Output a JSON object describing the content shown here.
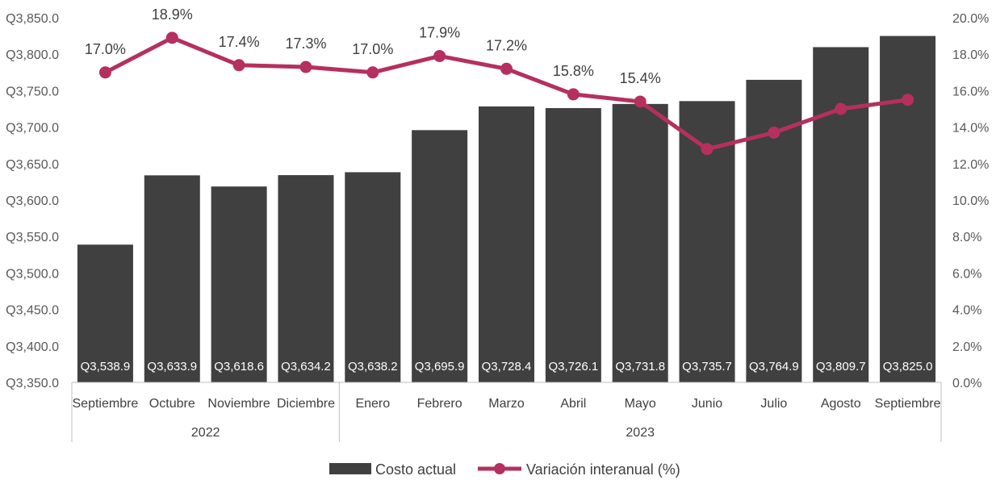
{
  "chart_data": {
    "type": "bar",
    "categories": [
      "Septiembre",
      "Octubre",
      "Noviembre",
      "Diciembre",
      "Enero",
      "Febrero",
      "Marzo",
      "Abril",
      "Mayo",
      "Junio",
      "Julio",
      "Agosto",
      "Septiembre"
    ],
    "groups": [
      {
        "label": "2022",
        "count": 4
      },
      {
        "label": "2023",
        "count": 9
      }
    ],
    "series": [
      {
        "name": "Costo actual",
        "type": "bar",
        "axis": "left",
        "values": [
          3538.9,
          3633.9,
          3618.6,
          3634.2,
          3638.2,
          3695.9,
          3728.4,
          3726.1,
          3731.8,
          3735.7,
          3764.9,
          3809.7,
          3825.0
        ],
        "labels": [
          "Q3,538.9",
          "Q3,633.9",
          "Q3,618.6",
          "Q3,634.2",
          "Q3,638.2",
          "Q3,695.9",
          "Q3,728.4",
          "Q3,726.1",
          "Q3,731.8",
          "Q3,735.7",
          "Q3,764.9",
          "Q3,809.7",
          "Q3,825.0"
        ],
        "color": "#404040"
      },
      {
        "name": "Variación interanual (%)",
        "type": "line",
        "axis": "right",
        "values": [
          17.0,
          18.9,
          17.4,
          17.3,
          17.0,
          17.9,
          17.2,
          15.8,
          15.4,
          12.8,
          13.7,
          15.0,
          15.5
        ],
        "labels": [
          "17.0%",
          "18.9%",
          "17.4%",
          "17.3%",
          "17.0%",
          "17.9%",
          "17.2%",
          "15.8%",
          "15.4%",
          "12.8%",
          "13.7%",
          "15.0%",
          "15.5%"
        ],
        "color": "#B5305E"
      }
    ],
    "y_left": {
      "min": 3350,
      "max": 3850,
      "step": 50,
      "tick_labels": [
        "Q3,350.0",
        "Q3,400.0",
        "Q3,450.0",
        "Q3,500.0",
        "Q3,550.0",
        "Q3,600.0",
        "Q3,650.0",
        "Q3,700.0",
        "Q3,750.0",
        "Q3,800.0",
        "Q3,850.0"
      ]
    },
    "y_right": {
      "min": 0,
      "max": 20,
      "step": 2,
      "tick_labels": [
        "0.0%",
        "2.0%",
        "4.0%",
        "6.0%",
        "8.0%",
        "10.0%",
        "12.0%",
        "14.0%",
        "16.0%",
        "18.0%",
        "20.0%"
      ]
    },
    "legend": {
      "position": "bottom",
      "items": [
        "Costo actual",
        "Variación interanual (%)"
      ]
    },
    "grid": false
  }
}
